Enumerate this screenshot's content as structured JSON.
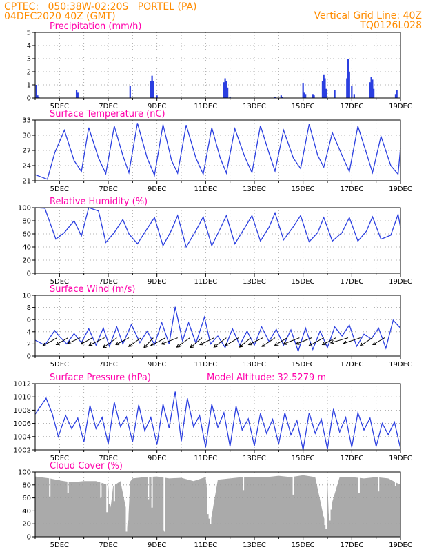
{
  "header": {
    "source_coords": "CPTEC:   050:38W-02:20S   PORTEL (PA)",
    "run_date": "04DEC2020 40Z (GMT)",
    "vertical_grid": "Vertical Grid Line: 40Z",
    "code": "TQ0126L028"
  },
  "colors": {
    "header": "#ff8c00",
    "title": "#ff00aa",
    "series": "#2b3fe0",
    "cloud": "#aaaaaa"
  },
  "chart_data": [
    {
      "type": "bar",
      "title": "Precipitation (mm/h)",
      "x_labels": [
        "5DEC",
        "7DEC",
        "9DEC",
        "11DEC",
        "13DEC",
        "15DEC",
        "17DEC",
        "19DEC"
      ],
      "xlim": [
        4.0,
        19.0
      ],
      "ylim": [
        0,
        5
      ],
      "yticks": [
        0,
        1,
        2,
        3,
        4,
        5
      ],
      "grid": true,
      "x": [
        4.05,
        4.1,
        4.15,
        5.7,
        5.75,
        7.9,
        8.75,
        8.8,
        8.85,
        9.0,
        11.75,
        11.8,
        11.85,
        11.9,
        12.0,
        13.85,
        14.1,
        14.15,
        15.0,
        15.05,
        15.1,
        15.4,
        15.45,
        15.8,
        15.85,
        15.9,
        15.95,
        16.3,
        16.8,
        16.85,
        16.9,
        17.0,
        17.1,
        17.75,
        17.8,
        17.85,
        17.9,
        18.8,
        18.85
      ],
      "values": [
        1.0,
        0.2,
        0.1,
        0.6,
        0.4,
        0.9,
        1.3,
        1.7,
        1.3,
        0.2,
        1.2,
        1.5,
        1.3,
        0.8,
        0.1,
        0.1,
        0.2,
        0.1,
        1.1,
        0.4,
        0.3,
        0.3,
        0.2,
        1.3,
        1.8,
        1.5,
        0.7,
        0.6,
        1.5,
        3.0,
        2.0,
        0.9,
        0.3,
        1.2,
        1.6,
        1.4,
        0.7,
        0.3,
        0.6
      ]
    },
    {
      "type": "line",
      "title": "Surface Temperature (nC)",
      "x_labels": [
        "5DEC",
        "7DEC",
        "9DEC",
        "11DEC",
        "13DEC",
        "15DEC",
        "17DEC",
        "19DEC"
      ],
      "xlim": [
        4.0,
        19.0
      ],
      "ylim": [
        21,
        33
      ],
      "yticks": [
        21,
        24,
        27,
        30,
        33
      ],
      "grid": true,
      "x": [
        4.0,
        4.5,
        4.8,
        5.2,
        5.6,
        5.9,
        6.2,
        6.6,
        6.9,
        7.25,
        7.6,
        7.85,
        8.2,
        8.6,
        8.9,
        9.25,
        9.6,
        9.85,
        10.2,
        10.6,
        10.9,
        11.25,
        11.6,
        11.85,
        12.2,
        12.6,
        12.9,
        13.25,
        13.6,
        13.85,
        14.2,
        14.6,
        14.9,
        15.25,
        15.6,
        15.85,
        16.2,
        16.6,
        16.9,
        17.25,
        17.6,
        17.85,
        18.2,
        18.6,
        18.9,
        19.0
      ],
      "values": [
        22.2,
        21.3,
        26.5,
        31.0,
        25.0,
        22.8,
        31.5,
        25.5,
        22.4,
        31.8,
        26.0,
        22.6,
        32.4,
        25.5,
        22.1,
        32.1,
        25.0,
        22.5,
        32.0,
        25.5,
        22.3,
        31.5,
        25.5,
        22.5,
        31.3,
        25.8,
        22.6,
        31.9,
        26.5,
        22.9,
        31.0,
        25.5,
        23.4,
        32.2,
        26.0,
        23.7,
        30.5,
        26.0,
        22.8,
        31.8,
        26.5,
        22.6,
        29.8,
        24.0,
        22.3,
        27.5
      ]
    },
    {
      "type": "line",
      "title": "Relative Humidity (%)",
      "x_labels": [
        "5DEC",
        "7DEC",
        "9DEC",
        "11DEC",
        "13DEC",
        "15DEC",
        "17DEC",
        "19DEC"
      ],
      "xlim": [
        4.0,
        19.0
      ],
      "ylim": [
        0,
        100
      ],
      "yticks": [
        0,
        20,
        40,
        60,
        80,
        100
      ],
      "grid": true,
      "x": [
        4.0,
        4.4,
        4.85,
        5.2,
        5.6,
        5.9,
        6.2,
        6.6,
        6.9,
        7.25,
        7.6,
        7.85,
        8.2,
        8.6,
        8.9,
        9.25,
        9.6,
        9.85,
        10.2,
        10.6,
        10.9,
        11.25,
        11.6,
        11.85,
        12.2,
        12.6,
        12.9,
        13.25,
        13.6,
        13.85,
        14.2,
        14.6,
        14.9,
        15.25,
        15.6,
        15.85,
        16.2,
        16.6,
        16.9,
        17.25,
        17.6,
        17.85,
        18.2,
        18.6,
        18.9,
        19.0
      ],
      "values": [
        100,
        99,
        52,
        62,
        80,
        57,
        100,
        95,
        47,
        62,
        82,
        60,
        45,
        68,
        85,
        42,
        66,
        88,
        40,
        65,
        86,
        42,
        68,
        88,
        45,
        69,
        88,
        49,
        70,
        92,
        51,
        71,
        88,
        48,
        62,
        85,
        49,
        62,
        85,
        49,
        64,
        86,
        52,
        58,
        90,
        70
      ]
    },
    {
      "type": "line",
      "title": "Surface Wind (m/s)",
      "x_labels": [
        "5DEC",
        "7DEC",
        "9DEC",
        "11DEC",
        "13DEC",
        "15DEC",
        "17DEC",
        "19DEC"
      ],
      "xlim": [
        4.0,
        19.0
      ],
      "ylim": [
        0,
        10
      ],
      "yticks": [
        0,
        2,
        4,
        6,
        8,
        10
      ],
      "grid": true,
      "x": [
        4.0,
        4.4,
        4.8,
        5.0,
        5.3,
        5.6,
        5.9,
        6.2,
        6.5,
        6.8,
        7.05,
        7.35,
        7.6,
        7.95,
        8.3,
        8.6,
        8.9,
        9.2,
        9.5,
        9.75,
        10.05,
        10.3,
        10.6,
        10.95,
        11.2,
        11.5,
        11.8,
        12.1,
        12.4,
        12.7,
        13.0,
        13.3,
        13.6,
        13.9,
        14.2,
        14.5,
        14.8,
        15.1,
        15.4,
        15.7,
        16.0,
        16.3,
        16.6,
        16.9,
        17.2,
        17.5,
        17.8,
        18.1,
        18.4,
        18.7,
        19.0
      ],
      "values": [
        2.6,
        1.8,
        4.2,
        3.2,
        2.0,
        3.7,
        2.2,
        4.5,
        1.8,
        4.6,
        1.6,
        4.8,
        2.0,
        5.2,
        2.2,
        4.1,
        1.9,
        5.5,
        2.0,
        8.1,
        2.5,
        5.5,
        2.1,
        6.4,
        2.0,
        3.3,
        1.4,
        4.5,
        1.8,
        4.1,
        1.8,
        4.8,
        2.4,
        4.4,
        1.8,
        4.3,
        0.8,
        4.6,
        1.1,
        4.1,
        1.4,
        4.8,
        3.3,
        5.1,
        1.6,
        3.6,
        2.8,
        4.6,
        1.3,
        5.9,
        4.6
      ],
      "wind_arrows": {
        "x": [
          4.9,
          5.35,
          5.85,
          6.35,
          6.85,
          7.35,
          7.85,
          8.35,
          8.85,
          9.35,
          9.85,
          10.35,
          10.85,
          11.35,
          11.85,
          12.35,
          12.85,
          13.35,
          13.85,
          14.35,
          14.85,
          15.35,
          15.85,
          16.35,
          16.85,
          17.35,
          17.85,
          18.35
        ],
        "u": [
          -2.3,
          -1.9,
          -2.0,
          -1.8,
          -2.5,
          -2.2,
          -2.1,
          -2.0,
          -1.5,
          -2.4,
          -2.6,
          -2.1,
          -1.9,
          -2.3,
          -2.0,
          -2.2,
          -1.8,
          -2.3,
          -2.1,
          -2.0,
          -2.6,
          -2.5,
          -2.4,
          -2.2,
          -2.8,
          -2.7,
          -2.0,
          -1.9
        ],
        "v": [
          -1.3,
          -1.1,
          -0.9,
          -1.0,
          -1.2,
          -1.6,
          -1.1,
          -1.4,
          -1.6,
          -1.3,
          -1.0,
          -1.5,
          -1.6,
          -1.1,
          -1.5,
          -1.3,
          -1.5,
          -1.1,
          -1.4,
          -1.2,
          -1.0,
          -1.0,
          -1.3,
          -1.1,
          -0.8,
          -0.9,
          -1.3,
          -1.1
        ]
      }
    },
    {
      "type": "line",
      "title": "Surface Pressure (hPa)",
      "subtitle": "Model Altitude: 32.5279  m",
      "x_labels": [
        "5DEC",
        "7DEC",
        "9DEC",
        "11DEC",
        "13DEC",
        "15DEC",
        "17DEC",
        "19DEC"
      ],
      "xlim": [
        4.0,
        19.0
      ],
      "ylim": [
        1002,
        1012
      ],
      "yticks": [
        1002,
        1004,
        1006,
        1008,
        1010,
        1012
      ],
      "grid": true,
      "x": [
        4.0,
        4.15,
        4.45,
        4.7,
        4.95,
        5.25,
        5.5,
        5.75,
        6.0,
        6.25,
        6.5,
        6.75,
        7.0,
        7.25,
        7.5,
        7.75,
        8.0,
        8.25,
        8.5,
        8.75,
        9.0,
        9.25,
        9.5,
        9.75,
        10.0,
        10.25,
        10.5,
        10.75,
        11.0,
        11.25,
        11.5,
        11.75,
        12.0,
        12.25,
        12.5,
        12.75,
        13.0,
        13.25,
        13.5,
        13.75,
        14.0,
        14.25,
        14.5,
        14.75,
        15.0,
        15.25,
        15.5,
        15.75,
        16.0,
        16.25,
        16.5,
        16.75,
        17.0,
        17.25,
        17.5,
        17.75,
        18.0,
        18.25,
        18.5,
        18.75,
        19.0
      ],
      "values": [
        1007.4,
        1008.2,
        1009.8,
        1007.5,
        1004.0,
        1007.2,
        1005.2,
        1006.8,
        1003.2,
        1008.7,
        1005.2,
        1006.9,
        1002.9,
        1009.2,
        1005.5,
        1007.0,
        1003.2,
        1008.8,
        1004.9,
        1006.9,
        1002.8,
        1008.9,
        1005.3,
        1010.8,
        1003.3,
        1009.8,
        1005.5,
        1007.2,
        1002.4,
        1008.9,
        1005.4,
        1007.6,
        1002.5,
        1008.6,
        1005.0,
        1006.7,
        1002.6,
        1007.5,
        1004.5,
        1006.6,
        1002.9,
        1007.6,
        1004.3,
        1006.4,
        1002.0,
        1007.6,
        1004.5,
        1006.6,
        1002.1,
        1008.2,
        1004.7,
        1006.9,
        1002.4,
        1007.6,
        1005.0,
        1006.8,
        1002.5,
        1006.0,
        1004.3,
        1006.2,
        1002.2
      ]
    },
    {
      "type": "bar",
      "title": "Cloud Cover (%)",
      "x_labels": [
        "5DEC",
        "7DEC",
        "9DEC",
        "11DEC",
        "13DEC",
        "15DEC",
        "17DEC",
        "19DEC"
      ],
      "xlim": [
        4.0,
        19.0
      ],
      "ylim": [
        0,
        100
      ],
      "yticks": [
        0,
        20,
        40,
        60,
        80,
        100
      ],
      "grid": true,
      "profile_x": [
        4.0,
        4.6,
        5.0,
        5.5,
        6.0,
        6.5,
        7.0,
        7.1,
        7.2,
        7.5,
        7.75,
        7.8,
        7.9,
        8.0,
        8.5,
        9.0,
        9.5,
        10.0,
        10.5,
        11.0,
        11.15,
        11.2,
        11.5,
        12.0,
        12.5,
        13.0,
        13.5,
        14.0,
        14.5,
        15.0,
        15.5,
        15.85,
        15.95,
        16.0,
        16.05,
        16.5,
        17.0,
        17.5,
        18.0,
        18.5,
        19.0
      ],
      "profile_values": [
        93,
        90,
        87,
        84,
        86,
        86,
        80,
        45,
        78,
        86,
        40,
        8,
        85,
        90,
        92,
        93,
        90,
        91,
        86,
        92,
        40,
        22,
        88,
        90,
        92,
        92,
        92,
        94,
        92,
        95,
        92,
        30,
        20,
        88,
        35,
        92,
        92,
        90,
        92,
        90,
        80
      ],
      "dips": [
        {
          "x": 4.6,
          "value": 62
        },
        {
          "x": 5.35,
          "value": 68
        },
        {
          "x": 6.7,
          "value": 60
        },
        {
          "x": 6.95,
          "value": 38
        },
        {
          "x": 7.05,
          "value": 50
        },
        {
          "x": 7.25,
          "value": 55
        },
        {
          "x": 7.75,
          "value": 8
        },
        {
          "x": 7.8,
          "value": 25
        },
        {
          "x": 8.65,
          "value": 58
        },
        {
          "x": 8.8,
          "value": 45
        },
        {
          "x": 9.3,
          "value": 10
        },
        {
          "x": 9.32,
          "value": 8
        },
        {
          "x": 11.1,
          "value": 35
        },
        {
          "x": 11.15,
          "value": 28
        },
        {
          "x": 11.2,
          "value": 20
        },
        {
          "x": 12.55,
          "value": 72
        },
        {
          "x": 14.6,
          "value": 65
        },
        {
          "x": 15.8,
          "value": 45
        },
        {
          "x": 15.85,
          "value": 32
        },
        {
          "x": 15.9,
          "value": 18
        },
        {
          "x": 15.95,
          "value": 12
        },
        {
          "x": 16.1,
          "value": 25
        },
        {
          "x": 16.15,
          "value": 42
        },
        {
          "x": 17.3,
          "value": 68
        },
        {
          "x": 18.1,
          "value": 70
        },
        {
          "x": 18.8,
          "value": 78
        }
      ]
    }
  ]
}
